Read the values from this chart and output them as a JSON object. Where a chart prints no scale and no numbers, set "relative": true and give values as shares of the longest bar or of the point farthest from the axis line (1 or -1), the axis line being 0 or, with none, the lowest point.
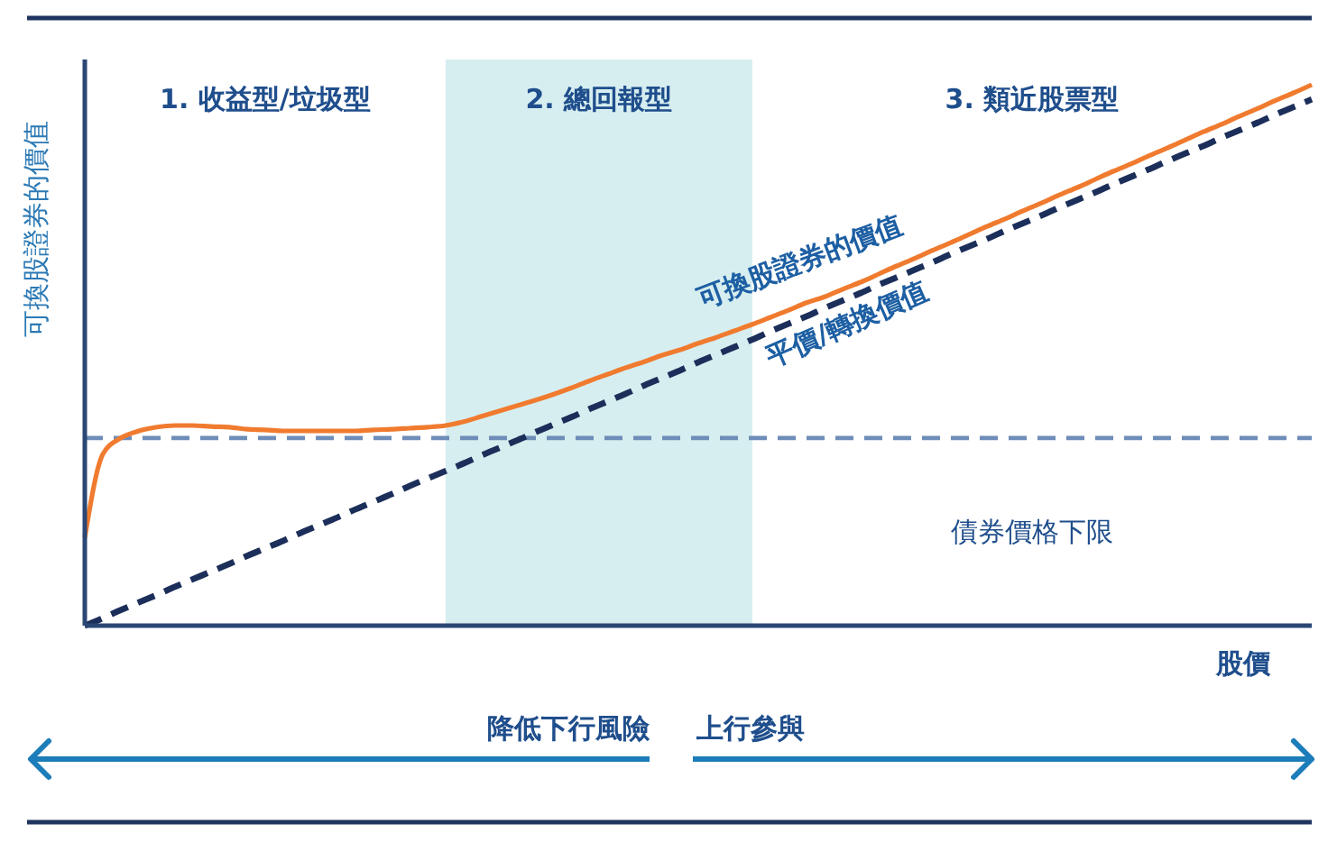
{
  "chart_data": {
    "type": "line",
    "relative": true,
    "ylabel": "可換股證券的價值",
    "xlabel": "股價",
    "categories": [
      null,
      null,
      null,
      null,
      null,
      null,
      null,
      null,
      null,
      null,
      null,
      null,
      null,
      null,
      null,
      null,
      null,
      null,
      null,
      null,
      null,
      null,
      null,
      null,
      null,
      null,
      null,
      null,
      null,
      null,
      null,
      null,
      null,
      null,
      null,
      null,
      null,
      null,
      null,
      null,
      null,
      null,
      null,
      null,
      null,
      null,
      null,
      null,
      null,
      null,
      null,
      null,
      null,
      null,
      null,
      null,
      null,
      null,
      null,
      null,
      null,
      null,
      null,
      null,
      null,
      null,
      null,
      null,
      null
    ],
    "series": [
      {
        "name": "可換股證券的價值",
        "color": "#f07b2f",
        "line_style": "solid",
        "values": [
          0.163,
          0.317,
          0.347,
          0.36,
          0.367,
          0.37,
          0.37,
          0.368,
          0.367,
          0.363,
          0.362,
          0.36,
          0.36,
          0.36,
          0.36,
          0.36,
          0.362,
          0.363,
          0.365,
          0.367,
          0.37,
          0.377,
          0.387,
          0.397,
          0.407,
          0.417,
          0.428,
          0.44,
          0.453,
          0.465,
          0.477,
          0.488,
          0.5,
          0.51,
          0.522,
          0.533,
          0.545,
          0.557,
          0.57,
          0.583,
          0.597,
          0.608,
          0.622,
          0.635,
          0.65,
          0.665,
          0.679,
          0.694,
          0.708,
          0.723,
          0.738,
          0.752,
          0.767,
          0.781,
          0.796,
          0.81,
          0.825,
          0.84,
          0.854,
          0.869,
          0.883,
          0.898,
          0.913,
          0.927,
          0.942,
          0.956,
          0.971,
          0.985,
          1
        ]
      },
      {
        "name": "平價/轉換價值",
        "color": "#1c2f5a",
        "line_style": "dashed",
        "values": [
          0,
          0.014,
          0.029,
          0.043,
          0.057,
          0.072,
          0.086,
          0.1,
          0.114,
          0.129,
          0.143,
          0.157,
          0.172,
          0.186,
          0.2,
          0.215,
          0.229,
          0.243,
          0.258,
          0.272,
          0.286,
          0.3,
          0.315,
          0.329,
          0.343,
          0.358,
          0.372,
          0.386,
          0.401,
          0.415,
          0.429,
          0.444,
          0.458,
          0.472,
          0.487,
          0.501,
          0.515,
          0.529,
          0.544,
          0.558,
          0.572,
          0.587,
          0.601,
          0.615,
          0.63,
          0.644,
          0.658,
          0.672,
          0.687,
          0.701,
          0.715,
          0.73,
          0.744,
          0.758,
          0.773,
          0.787,
          0.801,
          0.816,
          0.83,
          0.844,
          0.859,
          0.873,
          0.887,
          0.902,
          0.916,
          0.93,
          0.945,
          0.959,
          0.973
        ]
      }
    ],
    "ref_lines": [
      {
        "axis": "y",
        "value": 0.347,
        "label": "債券價格下限",
        "color": "#6e8db8",
        "line_style": "dashed"
      }
    ],
    "annotations": [
      "1. 收益型/垃圾型",
      "2. 總回報型",
      "3. 類近股票型",
      "降低下行風險",
      "上行參與"
    ]
  }
}
